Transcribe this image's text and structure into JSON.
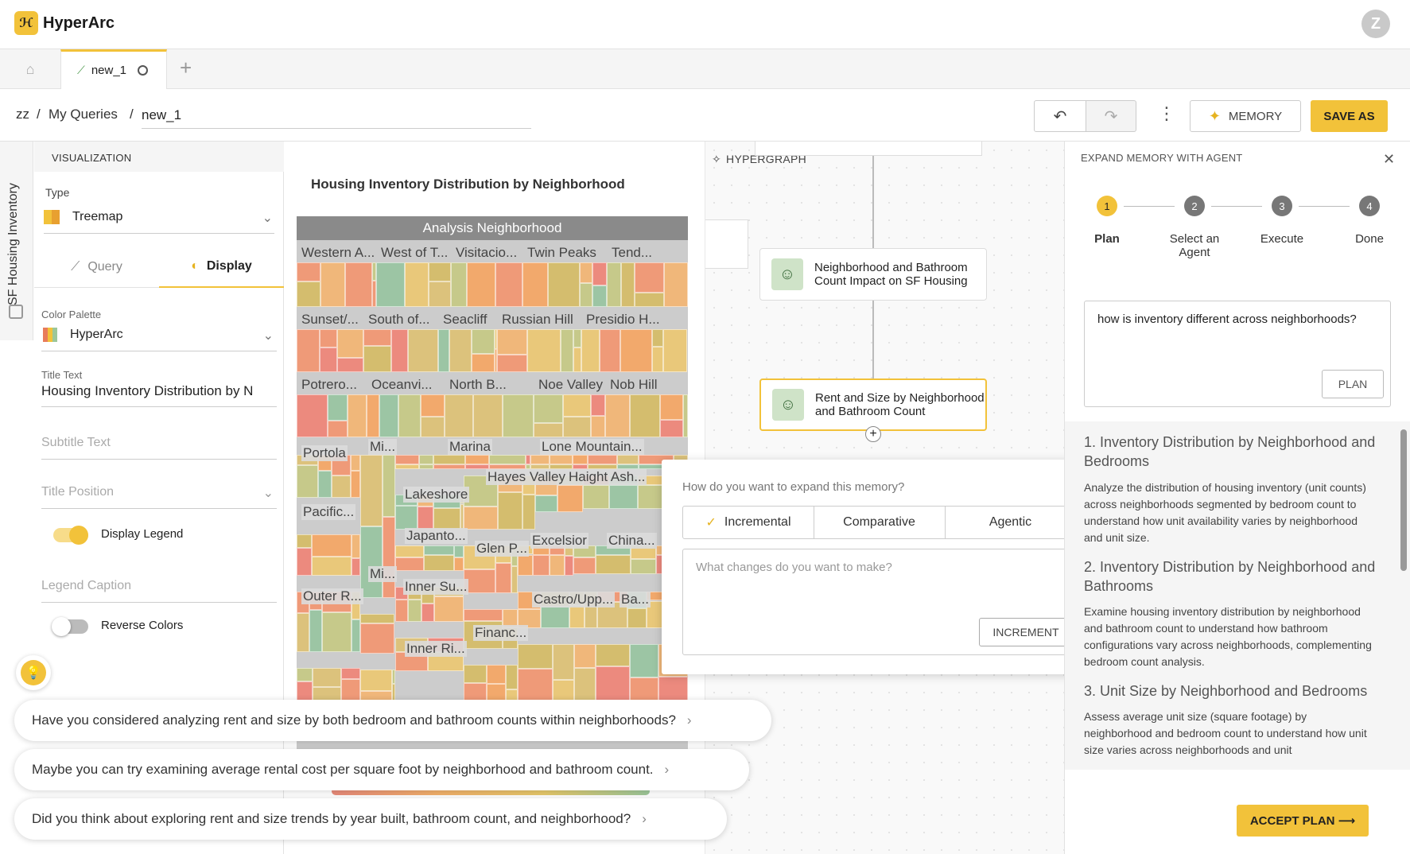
{
  "app": {
    "name": "HyperArc",
    "avatar_initial": "Z"
  },
  "tabs": [
    {
      "label": "new_1"
    }
  ],
  "breadcrumb": {
    "root": "zz",
    "sep": "/",
    "folder": "My Queries",
    "title": "new_1"
  },
  "toolbar": {
    "memory_label": "MEMORY",
    "save_as_label": "SAVE AS"
  },
  "sidebar_label": "SF Housing Inventory",
  "viz": {
    "header": "VISUALIZATION",
    "type_label": "Type",
    "type_value": "Treemap",
    "tab_query": "Query",
    "tab_display": "Display",
    "color_palette_label": "Color Palette",
    "color_palette_value": "HyperArc",
    "title_text_label": "Title Text",
    "title_text_value": "Housing Inventory Distribution by N",
    "subtitle_placeholder": "Subtitle Text",
    "title_position_placeholder": "Title Position",
    "display_legend_label": "Display Legend",
    "display_legend_on": true,
    "legend_caption_placeholder": "Legend Caption",
    "reverse_colors_label": "Reverse Colors",
    "reverse_colors_on": false
  },
  "chart": {
    "title": "Housing Inventory Distribution by Neighborhood",
    "header": "Analysis Neighborhood",
    "labels": [
      "Western A...",
      "West of T...",
      "Visitacio...",
      "Twin Peaks",
      "Tend...",
      "Sunset/...",
      "South of...",
      "Seacliff",
      "Russian Hill",
      "Presidio H...",
      "Potrero...",
      "Oceanvi...",
      "North B...",
      "Noe Valley",
      "Nob Hill",
      "Portola",
      "Mi...",
      "Marina",
      "Lone Mountain...",
      "Lakeshore",
      "Hayes Valley",
      "Haight Ash...",
      "Pacific...",
      "Japanto...",
      "Glen P...",
      "Excelsior",
      "China...",
      "Mi...",
      "Inner Su...",
      "Castro/Upp...",
      "Ba...",
      "Outer R...",
      "Financ...",
      "Inner Ri..."
    ]
  },
  "chart_data": {
    "type": "treemap",
    "title": "Housing Inventory Distribution by Neighborhood",
    "group_label": "Analysis Neighborhood",
    "categories": [
      "Western A...",
      "West of T...",
      "Visitacio...",
      "Twin Peaks",
      "Tend...",
      "Sunset/...",
      "South of...",
      "Seacliff",
      "Russian Hill",
      "Presidio H...",
      "Potrero...",
      "Oceanvi...",
      "North B...",
      "Noe Valley",
      "Nob Hill",
      "Portola",
      "Mi...",
      "Marina",
      "Lone Mountain...",
      "Lakeshore",
      "Hayes Valley",
      "Haight Ash...",
      "Pacific...",
      "Japanto...",
      "Glen P...",
      "Excelsior",
      "China...",
      "Mi...",
      "Inner Su...",
      "Castro/Upp...",
      "Ba...",
      "Outer R...",
      "Financ...",
      "Inner Ri..."
    ]
  },
  "graph": {
    "label": "HYPERGRAPH",
    "nodes": [
      {
        "title": "Neighborhood and Bathroom Count Impact on SF Housing"
      },
      {
        "title": "Rent and Size by Neighborhood and Bathroom Count"
      }
    ]
  },
  "expand": {
    "question": "How do you want to expand this memory?",
    "options": [
      "Incremental",
      "Comparative",
      "Agentic"
    ],
    "selected": "Incremental",
    "changes_placeholder": "What changes do you want to make?",
    "increment_label": "INCREMENT"
  },
  "agent": {
    "header": "EXPAND MEMORY WITH AGENT",
    "steps": [
      {
        "num": "1",
        "label": "Plan"
      },
      {
        "num": "2",
        "label": "Select an Agent"
      },
      {
        "num": "3",
        "label": "Execute"
      },
      {
        "num": "4",
        "label": "Done"
      }
    ],
    "prompt": "how is inventory different across neighborhoods?",
    "plan_button": "PLAN",
    "plan_items": [
      {
        "title": "1. Inventory Distribution by Neighborhood and Bedrooms",
        "desc": "Analyze the distribution of housing inventory (unit counts) across neighborhoods segmented by bedroom count to understand how unit availability varies by neighborhood and unit size."
      },
      {
        "title": "2. Inventory Distribution by Neighborhood and Bathrooms",
        "desc": "Examine housing inventory distribution by neighborhood and bathroom count to understand how bathroom configurations vary across neighborhoods, complementing bedroom count analysis."
      },
      {
        "title": "3. Unit Size by Neighborhood and Bedrooms",
        "desc": "Assess average unit size (square footage) by neighborhood and bedroom count to understand how unit size varies across neighborhoods and unit"
      }
    ],
    "accept_label": "ACCEPT PLAN ⟶"
  },
  "suggestions": [
    "Have you considered analyzing rent and size by both bedroom and bathroom counts within neighborhoods?",
    "Maybe you can try examining average rental cost per square foot by neighborhood and bathroom count.",
    "Did you think about exploring rent and size trends by year built, bathroom count, and neighborhood?"
  ]
}
